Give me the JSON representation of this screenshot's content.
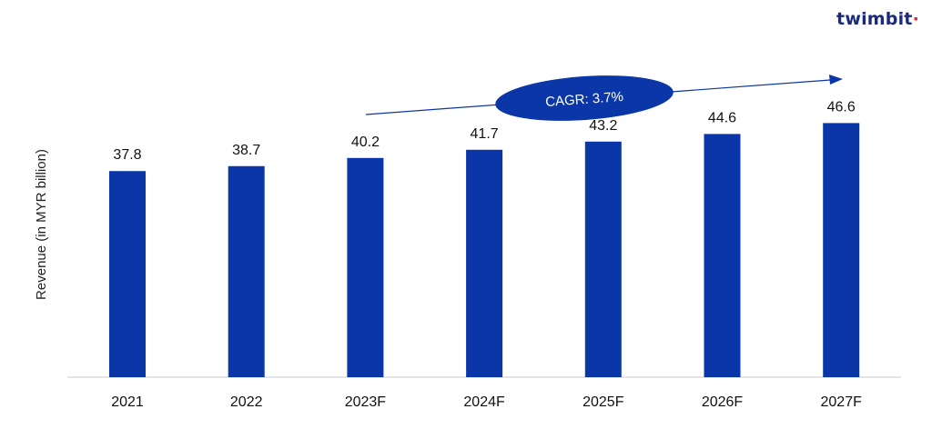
{
  "brand": {
    "name": "twimbit",
    "accent_color": "#e0243a",
    "text_color": "#1b2a7a"
  },
  "chart_data": {
    "type": "bar",
    "categories": [
      "2021",
      "2022",
      "2023F",
      "2024F",
      "2025F",
      "2026F",
      "2027F"
    ],
    "series": [
      {
        "values": [
          37.8,
          38.7,
          40.2,
          41.7,
          43.2,
          44.6,
          46.6
        ]
      }
    ],
    "value_labels": [
      "37.8",
      "38.7",
      "40.2",
      "41.7",
      "43.2",
      "44.6",
      "46.6"
    ],
    "title": "",
    "xlabel": "",
    "ylabel": "Revenue (in MYR billion)",
    "ylim": [
      0,
      55
    ],
    "grid": false,
    "annotation": {
      "text": "CAGR: 3.7%",
      "shape": "ellipse",
      "arrow": true
    },
    "colors": {
      "bar": "#0a36a8",
      "annotation": "#0a36a8",
      "axis": "#c8c8c8"
    }
  }
}
